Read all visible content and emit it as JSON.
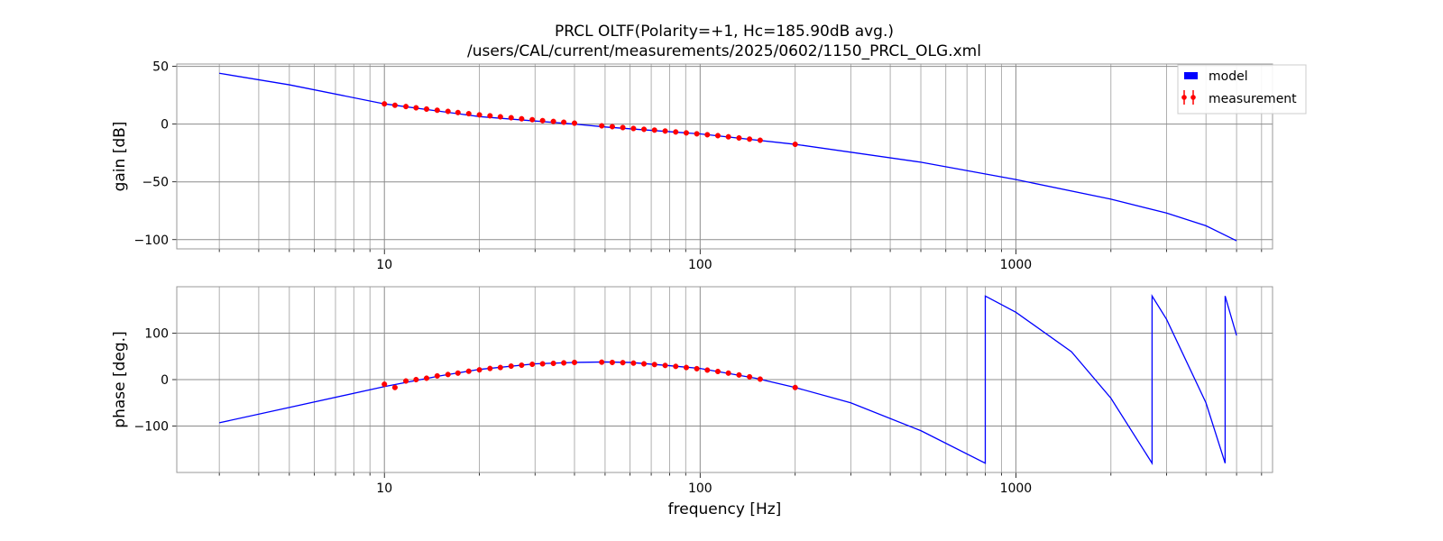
{
  "figure": {
    "title_line1": "PRCL OLTF(Polarity=+1,  Hc=185.90dB avg.)",
    "title_line2": "/users/CAL/current/measurements/2025/0602/1150_PRCL_OLG.xml"
  },
  "colors": {
    "model": "#0000ff",
    "measurement": "#ff0000",
    "grid": "#8c8c8c",
    "frame": "#999999"
  },
  "legend": {
    "model_label": "model",
    "measurement_label": "measurement",
    "placement": "top-right"
  },
  "chart_data": [
    {
      "type": "line",
      "panel": "gain",
      "ylabel": "gain [dB]",
      "xscale": "log",
      "xlim": [
        2.2,
        6500
      ],
      "ylim": [
        -108,
        52
      ],
      "x_ticks": [
        10,
        100,
        1000
      ],
      "x_tick_labels": [
        "10",
        "100",
        "1000"
      ],
      "y_ticks": [
        50,
        0,
        -50,
        -100
      ],
      "y_tick_labels": [
        "50",
        "0",
        "−50",
        "−100"
      ],
      "grid": true,
      "series": [
        {
          "name": "model",
          "style": "line",
          "x": [
            3,
            5,
            10,
            20,
            40,
            50,
            100,
            200,
            500,
            1000,
            2000,
            3000,
            4000,
            5000
          ],
          "y": [
            44,
            34,
            17.5,
            6.5,
            0,
            -2.5,
            -8.5,
            -17.5,
            -33,
            -48,
            -65,
            -77,
            -88,
            -101
          ]
        },
        {
          "name": "measurement",
          "style": "points",
          "x": [
            10,
            10.8,
            11.7,
            12.6,
            13.6,
            14.7,
            15.9,
            17.1,
            18.5,
            20,
            21.6,
            23.3,
            25.2,
            27.2,
            29.4,
            31.7,
            34.3,
            37,
            40,
            48.8,
            52.7,
            56.9,
            61.5,
            66.4,
            71.7,
            77.5,
            83.7,
            90.4,
            97.6,
            105.4,
            113.8,
            122.9,
            132.8,
            143.4,
            154.9,
            200
          ],
          "y": [
            17.5,
            16.3,
            15.2,
            14.1,
            13,
            12,
            11,
            10,
            9,
            8,
            7.2,
            6.3,
            5.5,
            4.6,
            3.8,
            3,
            2.3,
            1.6,
            0.8,
            -1.5,
            -2.2,
            -3,
            -3.8,
            -4.5,
            -5.2,
            -6,
            -6.8,
            -7.6,
            -8.4,
            -9.2,
            -10,
            -11,
            -12,
            -13,
            -14,
            -17.5
          ]
        }
      ]
    },
    {
      "type": "line",
      "panel": "phase",
      "ylabel": "phase [deg.]",
      "xlabel": "frequency [Hz]",
      "xscale": "log",
      "xlim": [
        2.2,
        6500
      ],
      "ylim": [
        -200,
        200
      ],
      "x_ticks": [
        10,
        100,
        1000
      ],
      "x_tick_labels": [
        "10",
        "100",
        "1000"
      ],
      "y_ticks": [
        100,
        0,
        -100
      ],
      "y_tick_labels": [
        "100",
        "0",
        "−100"
      ],
      "grid": true,
      "series": [
        {
          "name": "model",
          "style": "line",
          "x": [
            3,
            5,
            10,
            15,
            20,
            30,
            40,
            50,
            60,
            80,
            100,
            150,
            200,
            300,
            500,
            800,
            800.01,
            1000,
            1500,
            2000,
            2700,
            2700.01,
            3000,
            4000,
            4600,
            4600.01,
            5000
          ],
          "y": [
            -93,
            -60,
            -15,
            8,
            22,
            34,
            37,
            38,
            37,
            30,
            24,
            3,
            -17,
            -50,
            -110,
            -180,
            180,
            145,
            60,
            -40,
            -180,
            180,
            130,
            -50,
            -180,
            180,
            95
          ]
        },
        {
          "name": "measurement",
          "style": "points",
          "x": [
            10,
            10.8,
            11.7,
            12.6,
            13.6,
            14.7,
            15.9,
            17.1,
            18.5,
            20,
            21.6,
            23.3,
            25.2,
            27.2,
            29.4,
            31.7,
            34.3,
            37,
            40,
            48.8,
            52.7,
            56.9,
            61.5,
            66.4,
            71.7,
            77.5,
            83.7,
            90.4,
            97.6,
            105.4,
            113.8,
            122.9,
            132.8,
            143.4,
            154.9,
            200
          ],
          "y": [
            -10,
            -17,
            -3,
            0,
            3,
            8,
            11,
            14,
            18,
            21,
            24,
            26,
            29,
            31,
            33,
            34,
            35,
            36,
            37,
            37.5,
            37,
            36.5,
            35.5,
            34,
            32.5,
            30.5,
            28.5,
            26,
            23.5,
            20.5,
            17.5,
            14,
            10,
            6,
            1,
            -17
          ]
        }
      ]
    }
  ]
}
